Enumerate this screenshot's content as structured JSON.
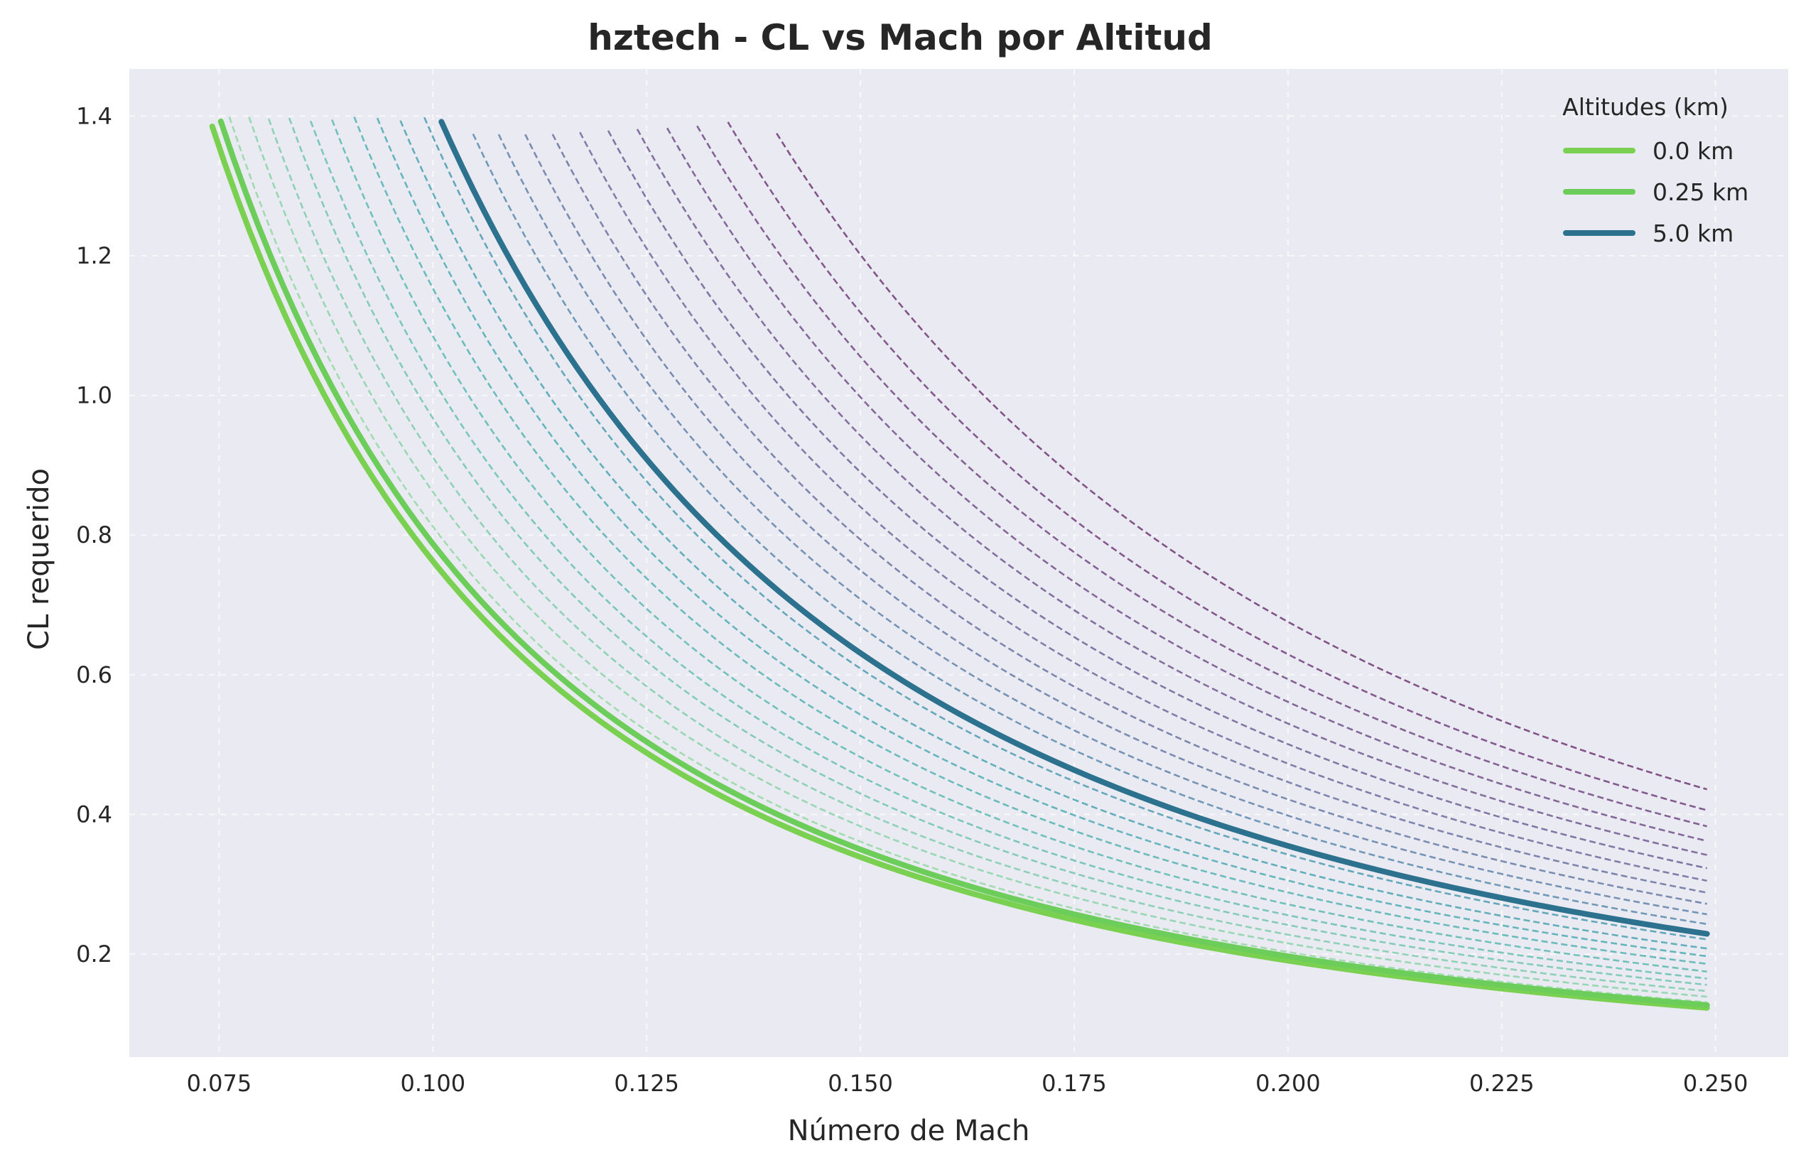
{
  "chart_data": {
    "type": "line",
    "title": "hztech - CL vs Mach por Altitud",
    "xlabel": "Número de Mach",
    "ylabel": "CL requerido",
    "xlim": [
      0.0645,
      0.2585
    ],
    "ylim": [
      0.0526,
      1.4675
    ],
    "xticks": [
      "0.075",
      "0.100",
      "0.125",
      "0.150",
      "0.175",
      "0.200",
      "0.225",
      "0.250"
    ],
    "yticks": [
      "0.2",
      "0.4",
      "0.6",
      "0.8",
      "1.0",
      "1.2",
      "1.4"
    ],
    "grid": true,
    "grid_style": "dashed",
    "background": "#eaeaf2",
    "legend": {
      "title": "Altitudes (km)",
      "position": "top-right",
      "entries": [
        {
          "label": "0.0 km",
          "color": "#7ad151"
        },
        {
          "label": "0.25 km",
          "color": "#6ccd5a"
        },
        {
          "label": "5.0 km",
          "color": "#2c728e"
        }
      ]
    },
    "highlighted_series": [
      {
        "name": "0.0 km",
        "color": "#7ad151",
        "x_start": 0.0742,
        "x_end": 0.249,
        "points": [
          [
            0.0742,
            1.385
          ],
          [
            0.1,
            0.762
          ],
          [
            0.125,
            0.488
          ],
          [
            0.15,
            0.339
          ],
          [
            0.175,
            0.249
          ],
          [
            0.2,
            0.191
          ],
          [
            0.225,
            0.151
          ],
          [
            0.249,
            0.123
          ]
        ]
      },
      {
        "name": "0.25 km",
        "color": "#6ccd5a",
        "x_start": 0.0752,
        "x_end": 0.249,
        "points": [
          [
            0.0752,
            1.39
          ],
          [
            0.1,
            0.786
          ],
          [
            0.125,
            0.503
          ],
          [
            0.15,
            0.349
          ],
          [
            0.175,
            0.257
          ],
          [
            0.2,
            0.197
          ],
          [
            0.225,
            0.155
          ],
          [
            0.249,
            0.127
          ]
        ]
      },
      {
        "name": "5.0 km",
        "color": "#2c728e",
        "x_start": 0.101,
        "x_end": 0.249,
        "points": [
          [
            0.101,
            1.395
          ],
          [
            0.125,
            0.91
          ],
          [
            0.15,
            0.632
          ],
          [
            0.175,
            0.465
          ],
          [
            0.2,
            0.356
          ],
          [
            0.225,
            0.281
          ],
          [
            0.249,
            0.229
          ]
        ]
      }
    ],
    "background_series": {
      "style": "dashed",
      "count": 21,
      "description_values": {
        "start_x": [
          0.0762,
          0.0785,
          0.0808,
          0.0832,
          0.0857,
          0.0882,
          0.0908,
          0.0935,
          0.0962,
          0.099,
          0.1047,
          0.1077,
          0.1108,
          0.114,
          0.1172,
          0.1205,
          0.1239,
          0.1274,
          0.1309,
          0.1345,
          0.1402
        ],
        "end_cl": [
          0.131,
          0.139,
          0.147,
          0.156,
          0.165,
          0.175,
          0.186,
          0.197,
          0.208,
          0.221,
          0.243,
          0.257,
          0.272,
          0.288,
          0.305,
          0.323,
          0.342,
          0.362,
          0.383,
          0.406,
          0.436
        ],
        "colors": [
          "#95d8a4",
          "#8ad3a8",
          "#7ecdac",
          "#72c7ae",
          "#66c1b0",
          "#5cbab2",
          "#54b3b3",
          "#4eabb3",
          "#4ba3b2",
          "#4b9bb0",
          "#5b8bad",
          "#6283aa",
          "#677ba6",
          "#6b73a1",
          "#6e6b9c",
          "#706296",
          "#715a90",
          "#72518a",
          "#724983",
          "#71407c",
          "#703874"
        ]
      }
    }
  }
}
